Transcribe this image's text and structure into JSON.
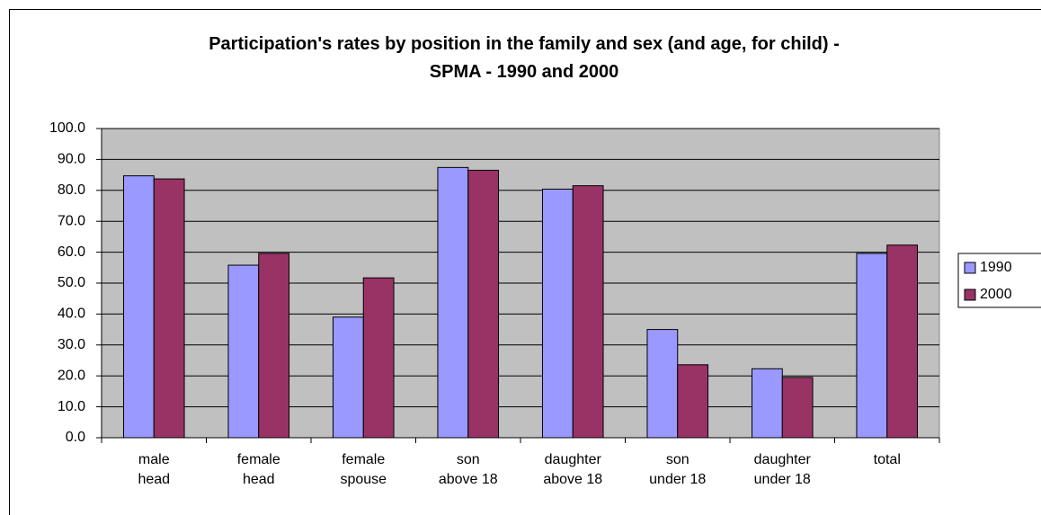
{
  "chart_data": {
    "type": "bar",
    "title": "Participation's rates by position in the family and sex (and age, for child) - SPMA - 1990 and 2000",
    "categories": [
      "male\nhead",
      "female\nhead",
      "female\nspouse",
      "son\nabove 18",
      "daughter\nabove 18",
      "son\nunder 18",
      "daughter\nunder 18",
      "total"
    ],
    "series": [
      {
        "name": "1990",
        "color": "#9999ff",
        "values": [
          84.7,
          55.8,
          39.0,
          87.4,
          80.4,
          35.0,
          22.3,
          59.6
        ]
      },
      {
        "name": "2000",
        "color": "#993366",
        "values": [
          83.7,
          59.6,
          51.7,
          86.5,
          81.5,
          23.6,
          19.5,
          62.3
        ]
      }
    ],
    "ylim": [
      0,
      100
    ],
    "yticks": [
      {
        "value": 0,
        "label": "0.0"
      },
      {
        "value": 10,
        "label": "10.0"
      },
      {
        "value": 20,
        "label": "20.0"
      },
      {
        "value": 30,
        "label": "30.0"
      },
      {
        "value": 40,
        "label": "40.0"
      },
      {
        "value": 50,
        "label": "50.0"
      },
      {
        "value": 60,
        "label": "60.0"
      },
      {
        "value": 70,
        "label": "70.0"
      },
      {
        "value": 80,
        "label": "80.0"
      },
      {
        "value": 90,
        "label": "90.0"
      },
      {
        "value": 100,
        "label": "100.0"
      }
    ],
    "grid": true,
    "plot_background": "#c0c0c0",
    "legend": "right"
  }
}
